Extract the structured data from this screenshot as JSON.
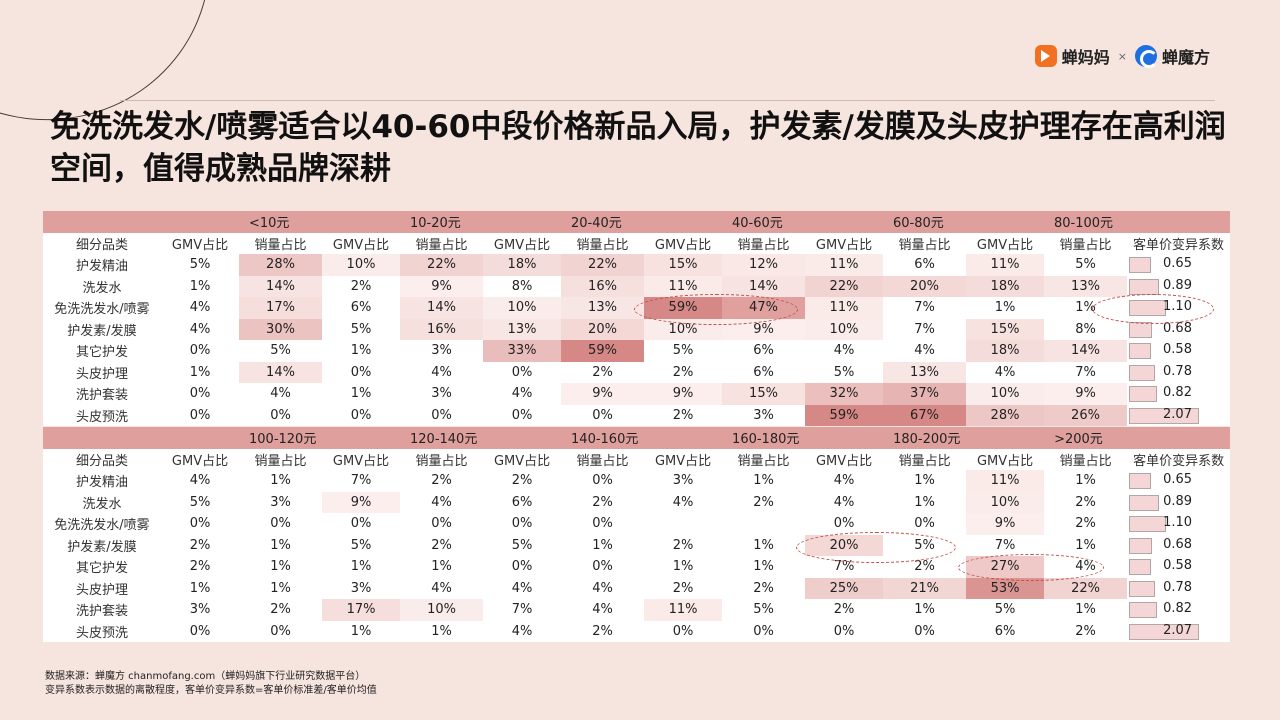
{
  "brand": {
    "left": "蝉妈妈",
    "sep": "×",
    "right": "蝉魔方"
  },
  "title": "免洗洗发水/喷雾适合以40-60中段价格新品入局，护发素/发膜及头皮护理存在高利润空间，值得成熟品牌深耕",
  "headers": {
    "category": "细分品类",
    "gmv": "GMV占比",
    "sales": "销量占比",
    "cv": "客单价变异系数"
  },
  "categories": [
    "护发精油",
    "洗发水",
    "免洗洗发水/喷雾",
    "护发素/发膜",
    "其它护发",
    "头皮护理",
    "洗护套装",
    "头皮预洗"
  ],
  "cv": [
    "0.65",
    "0.89",
    "1.10",
    "0.68",
    "0.58",
    "0.78",
    "0.82",
    "2.07"
  ],
  "cv_values": [
    0.65,
    0.89,
    1.1,
    0.68,
    0.58,
    0.78,
    0.82,
    2.07
  ],
  "table1": {
    "ranges": [
      "<10元",
      "10-20元",
      "20-40元",
      "40-60元",
      "60-80元",
      "80-100元"
    ],
    "rows": [
      [
        "5%",
        "28%",
        "10%",
        "22%",
        "18%",
        "22%",
        "15%",
        "12%",
        "11%",
        "6%",
        "11%",
        "5%"
      ],
      [
        "1%",
        "14%",
        "2%",
        "9%",
        "8%",
        "16%",
        "11%",
        "14%",
        "22%",
        "20%",
        "18%",
        "13%"
      ],
      [
        "4%",
        "17%",
        "6%",
        "14%",
        "10%",
        "13%",
        "59%",
        "47%",
        "11%",
        "7%",
        "1%",
        "1%"
      ],
      [
        "4%",
        "30%",
        "5%",
        "16%",
        "13%",
        "20%",
        "10%",
        "9%",
        "10%",
        "7%",
        "15%",
        "8%"
      ],
      [
        "0%",
        "5%",
        "1%",
        "3%",
        "33%",
        "59%",
        "5%",
        "6%",
        "4%",
        "4%",
        "18%",
        "14%"
      ],
      [
        "1%",
        "14%",
        "0%",
        "4%",
        "0%",
        "2%",
        "2%",
        "6%",
        "5%",
        "13%",
        "4%",
        "7%"
      ],
      [
        "0%",
        "4%",
        "1%",
        "3%",
        "4%",
        "9%",
        "9%",
        "15%",
        "32%",
        "37%",
        "10%",
        "9%"
      ],
      [
        "0%",
        "0%",
        "0%",
        "0%",
        "0%",
        "0%",
        "2%",
        "3%",
        "59%",
        "67%",
        "28%",
        "26%"
      ]
    ]
  },
  "table2": {
    "ranges": [
      "100-120元",
      "120-140元",
      "140-160元",
      "160-180元",
      "180-200元",
      ">200元"
    ],
    "rows": [
      [
        "4%",
        "1%",
        "7%",
        "2%",
        "2%",
        "0%",
        "3%",
        "1%",
        "4%",
        "1%",
        "11%",
        "1%"
      ],
      [
        "5%",
        "3%",
        "9%",
        "4%",
        "6%",
        "2%",
        "4%",
        "2%",
        "4%",
        "1%",
        "10%",
        "2%"
      ],
      [
        "0%",
        "0%",
        "0%",
        "0%",
        "0%",
        "0%",
        "",
        "",
        "0%",
        "0%",
        "9%",
        "2%"
      ],
      [
        "2%",
        "1%",
        "5%",
        "2%",
        "5%",
        "1%",
        "2%",
        "1%",
        "20%",
        "5%",
        "7%",
        "1%"
      ],
      [
        "2%",
        "1%",
        "1%",
        "1%",
        "0%",
        "0%",
        "1%",
        "1%",
        "7%",
        "2%",
        "27%",
        "4%"
      ],
      [
        "1%",
        "1%",
        "3%",
        "4%",
        "4%",
        "4%",
        "2%",
        "2%",
        "25%",
        "21%",
        "53%",
        "22%"
      ],
      [
        "3%",
        "2%",
        "17%",
        "10%",
        "7%",
        "4%",
        "11%",
        "5%",
        "2%",
        "1%",
        "5%",
        "1%"
      ],
      [
        "0%",
        "0%",
        "1%",
        "1%",
        "4%",
        "2%",
        "0%",
        "0%",
        "0%",
        "0%",
        "6%",
        "2%"
      ]
    ]
  },
  "footer": {
    "line1": "数据来源：蝉魔方 chanmofang.com（蝉妈妈旗下行业研究数据平台）",
    "line2": "变异系数表示数据的离散程度，客单价变异系数=客单价标准差/客单价均值"
  }
}
